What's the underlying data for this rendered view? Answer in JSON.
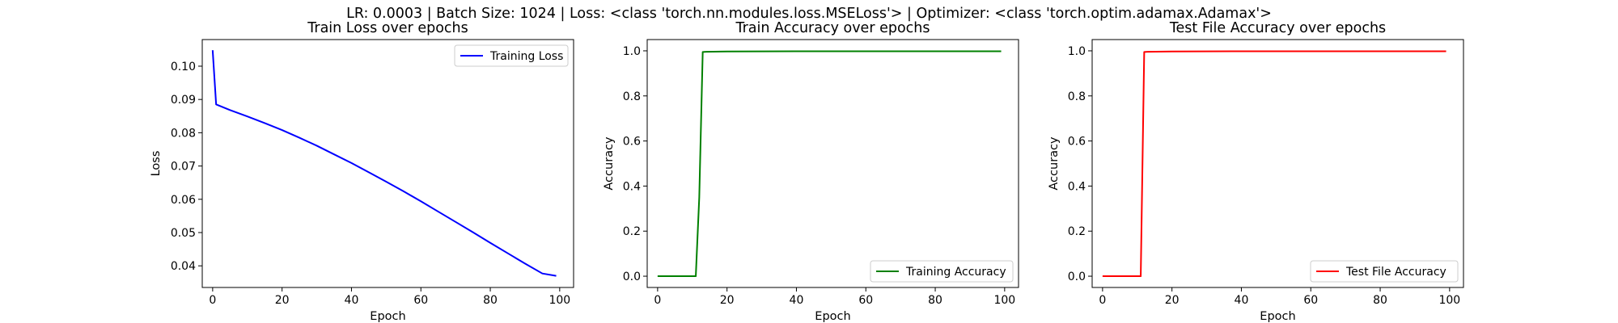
{
  "figure": {
    "suptitle": "LR: 0.0003 | Batch Size: 1024 | Loss: <class 'torch.nn.modules.loss.MSELoss'> | Optimizer: <class 'torch.optim.adamax.Adamax'>"
  },
  "chart_data": [
    {
      "type": "line",
      "title": "Train Loss over epochs",
      "xlabel": "Epoch",
      "ylabel": "Loss",
      "xlim": [
        -3,
        104
      ],
      "ylim": [
        0.0335,
        0.108
      ],
      "xticks": [
        0,
        20,
        40,
        60,
        80,
        100
      ],
      "xtick_labels": [
        "0",
        "20",
        "40",
        "60",
        "80",
        "100"
      ],
      "yticks": [
        0.04,
        0.05,
        0.06,
        0.07,
        0.08,
        0.09,
        0.1
      ],
      "ytick_labels": [
        "0.04",
        "0.05",
        "0.06",
        "0.07",
        "0.08",
        "0.09",
        "0.10"
      ],
      "legend": "top-right",
      "grid": false,
      "series": [
        {
          "name": "Training Loss",
          "color": "#0000ff",
          "x": [
            0,
            1,
            5,
            10,
            15,
            20,
            25,
            30,
            35,
            40,
            45,
            50,
            55,
            60,
            65,
            70,
            75,
            80,
            85,
            90,
            95,
            99
          ],
          "y": [
            0.1048,
            0.0885,
            0.0868,
            0.0849,
            0.0829,
            0.0808,
            0.0785,
            0.0761,
            0.0735,
            0.0709,
            0.0681,
            0.0653,
            0.0624,
            0.0594,
            0.0563,
            0.0532,
            0.0501,
            0.0469,
            0.0438,
            0.0407,
            0.0377,
            0.037
          ]
        }
      ]
    },
    {
      "type": "line",
      "title": "Train Accuracy over epochs",
      "xlabel": "Epoch",
      "ylabel": "Accuracy",
      "xlim": [
        -3,
        104
      ],
      "ylim": [
        -0.05,
        1.05
      ],
      "xticks": [
        0,
        20,
        40,
        60,
        80,
        100
      ],
      "xtick_labels": [
        "0",
        "20",
        "40",
        "60",
        "80",
        "100"
      ],
      "yticks": [
        0.0,
        0.2,
        0.4,
        0.6,
        0.8,
        1.0
      ],
      "ytick_labels": [
        "0.0",
        "0.2",
        "0.4",
        "0.6",
        "0.8",
        "1.0"
      ],
      "legend": "bottom-right",
      "grid": false,
      "series": [
        {
          "name": "Training Accuracy",
          "color": "#008000",
          "x": [
            0,
            1,
            5,
            10,
            11,
            12,
            13,
            14,
            20,
            40,
            60,
            80,
            99
          ],
          "y": [
            0.0,
            0.0,
            0.0,
            0.0,
            0.0,
            0.35,
            0.995,
            0.996,
            0.997,
            0.998,
            0.998,
            0.998,
            0.998
          ]
        }
      ]
    },
    {
      "type": "line",
      "title": "Test File Accuracy over epochs",
      "xlabel": "Epoch",
      "ylabel": "Accuracy",
      "xlim": [
        -3,
        104
      ],
      "ylim": [
        -0.05,
        1.05
      ],
      "xticks": [
        0,
        20,
        40,
        60,
        80,
        100
      ],
      "xtick_labels": [
        "0",
        "20",
        "40",
        "60",
        "80",
        "100"
      ],
      "yticks": [
        0.0,
        0.2,
        0.4,
        0.6,
        0.8,
        1.0
      ],
      "ytick_labels": [
        "0.0",
        "0.2",
        "0.4",
        "0.6",
        "0.8",
        "1.0"
      ],
      "legend": "bottom-right",
      "grid": false,
      "series": [
        {
          "name": "Test File Accuracy",
          "color": "#ff0000",
          "x": [
            0,
            1,
            5,
            10,
            11,
            12,
            13,
            20,
            40,
            60,
            80,
            99
          ],
          "y": [
            0.0,
            0.0,
            0.0,
            0.0,
            0.0,
            0.995,
            0.996,
            0.997,
            0.998,
            0.998,
            0.998,
            0.998
          ]
        }
      ]
    }
  ]
}
